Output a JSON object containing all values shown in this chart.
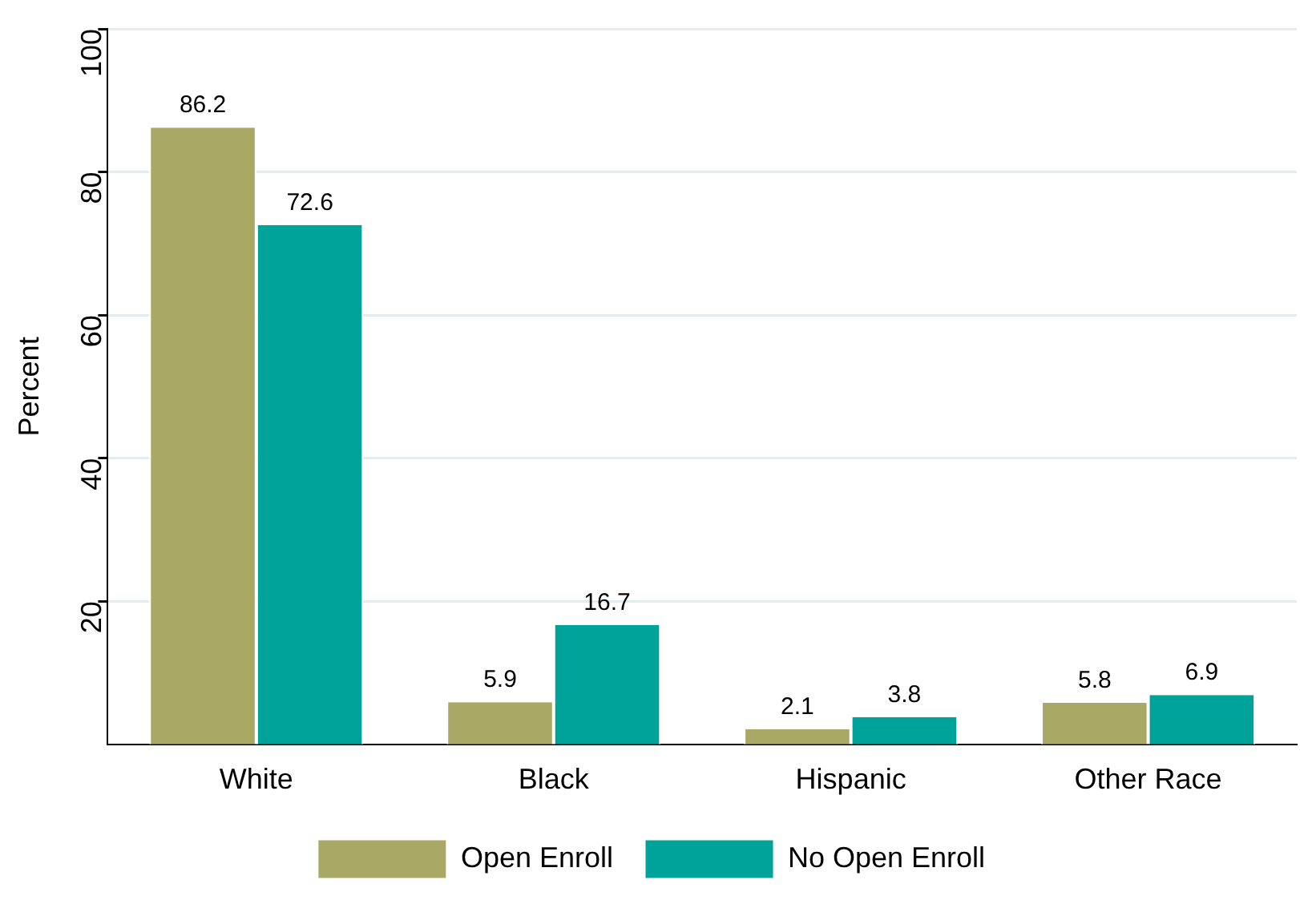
{
  "chart_data": {
    "type": "bar",
    "ylabel": "Percent",
    "categories": [
      "White",
      "Black",
      "Hispanic",
      "Other Race"
    ],
    "series": [
      {
        "name": "Open Enroll",
        "color": "#a9a864",
        "values": [
          86.2,
          5.9,
          2.1,
          5.8
        ]
      },
      {
        "name": "No Open Enroll",
        "color": "#00a39a",
        "values": [
          72.6,
          16.7,
          3.8,
          6.9
        ]
      }
    ],
    "ylim": [
      0,
      100
    ],
    "yticks": [
      20,
      40,
      60,
      80,
      100
    ],
    "grid": "y",
    "legend": "bottom",
    "data_labels": true
  }
}
